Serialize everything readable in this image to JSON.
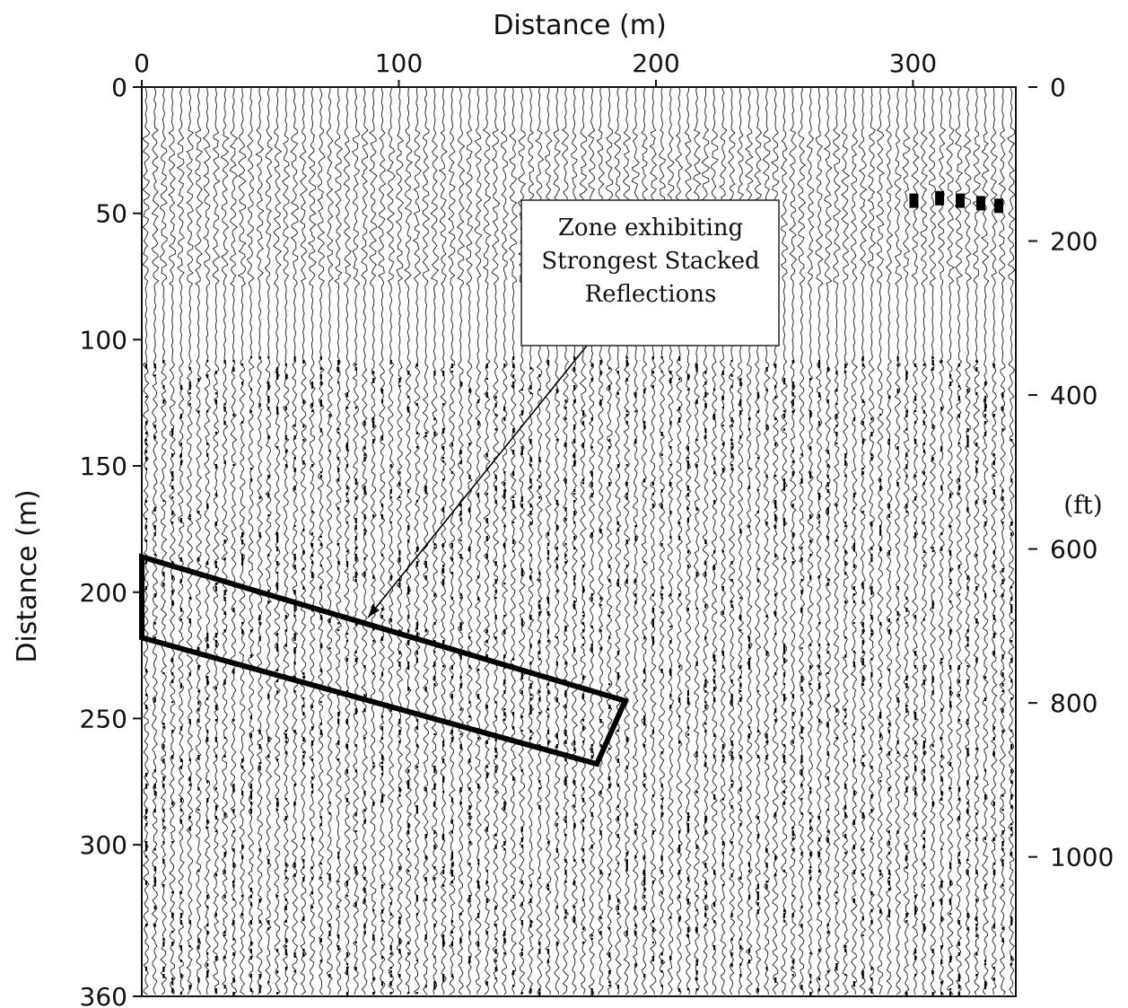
{
  "chart_data": {
    "type": "seismic-section",
    "title": "",
    "xlabel": "Distance (m)",
    "ylabel": "Distance (m)",
    "right_unit_label": "(ft)",
    "xlim": [
      0,
      340
    ],
    "ylim": [
      0,
      360
    ],
    "x_ticks": [
      0,
      100,
      200,
      300
    ],
    "x_tick_labels": [
      "0",
      "100",
      "200",
      "300"
    ],
    "y_ticks": [
      0,
      50,
      100,
      150,
      200,
      250,
      300,
      360
    ],
    "y_tick_labels": [
      "0",
      "50",
      "100",
      "150",
      "200",
      "250",
      "300",
      "360"
    ],
    "right_ticks_ft": [
      0,
      200,
      400,
      600,
      800,
      1000
    ],
    "right_tick_labels": [
      "0",
      "200",
      "400",
      "600",
      "800",
      "1000"
    ],
    "trace_count": 100,
    "annotation": {
      "lines": [
        "Zone exhibiting",
        "Strongest Stacked",
        "Reflections"
      ],
      "highlight_zone": [
        [
          0,
          186
        ],
        [
          0,
          218
        ],
        [
          177,
          268
        ],
        [
          188,
          243
        ]
      ],
      "arrow_tip": [
        88,
        210
      ]
    }
  }
}
